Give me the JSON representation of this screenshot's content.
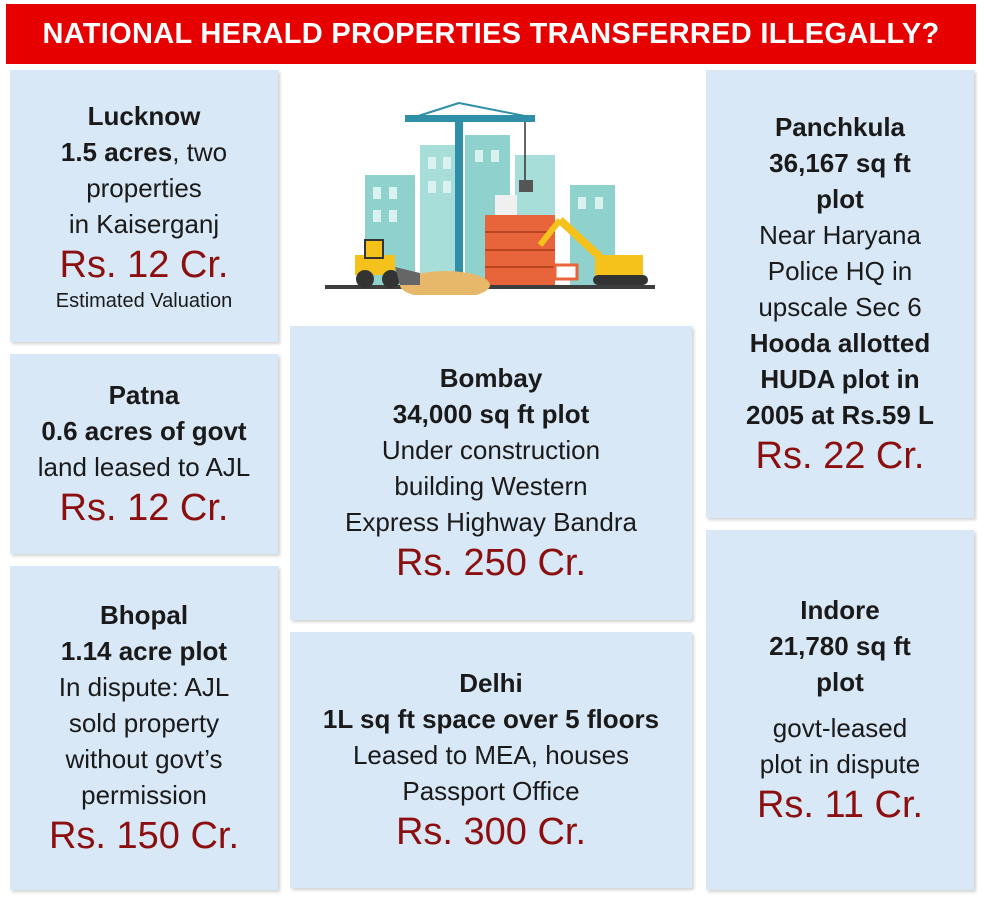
{
  "title": "NATIONAL HERALD PROPERTIES TRANSFERRED ILLEGALLY?",
  "colors": {
    "banner": "#e60000",
    "card": "#d8e8f7",
    "price": "#8b0f0f"
  },
  "illustration": "construction-site-icon",
  "lucknow": {
    "city": "Lucknow",
    "size_bold": "1.5 acres",
    "size_rest": ", two",
    "line3": "properties",
    "line4": "in Kaiserganj",
    "price": "Rs. 12 Cr.",
    "note": "Estimated Valuation"
  },
  "patna": {
    "city": "Patna",
    "detail_bold": "0.6 acres of govt",
    "detail": "land leased to AJL",
    "price": "Rs. 12 Cr."
  },
  "bhopal": {
    "city": "Bhopal",
    "size": "1.14 acre plot",
    "desc": [
      "In dispute: AJL",
      "sold property",
      "without govt’s",
      "permission"
    ],
    "price": "Rs. 150 Cr."
  },
  "bombay": {
    "city": "Bombay",
    "size": "34,000 sq ft plot",
    "desc": [
      "Under construction",
      "building Western",
      "Express Highway Bandra"
    ],
    "price": "Rs. 250 Cr."
  },
  "delhi": {
    "city": "Delhi",
    "size": "1L sq ft space over 5 floors",
    "desc": [
      "Leased to MEA, houses",
      "Passport Office"
    ],
    "price": "Rs. 300 Cr."
  },
  "panchkula": {
    "city": "Panchkula",
    "size": [
      "36,167 sq ft",
      "plot"
    ],
    "desc": [
      "Near Haryana",
      "Police HQ in",
      "upscale Sec 6"
    ],
    "bold": [
      "Hooda allotted",
      "HUDA plot in",
      "2005 at Rs.59 L"
    ],
    "price": "Rs. 22 Cr."
  },
  "indore": {
    "city": "Indore",
    "size": [
      "21,780 sq ft",
      "plot"
    ],
    "desc": [
      "govt-leased",
      "plot in dispute"
    ],
    "price": "Rs. 11 Cr."
  }
}
